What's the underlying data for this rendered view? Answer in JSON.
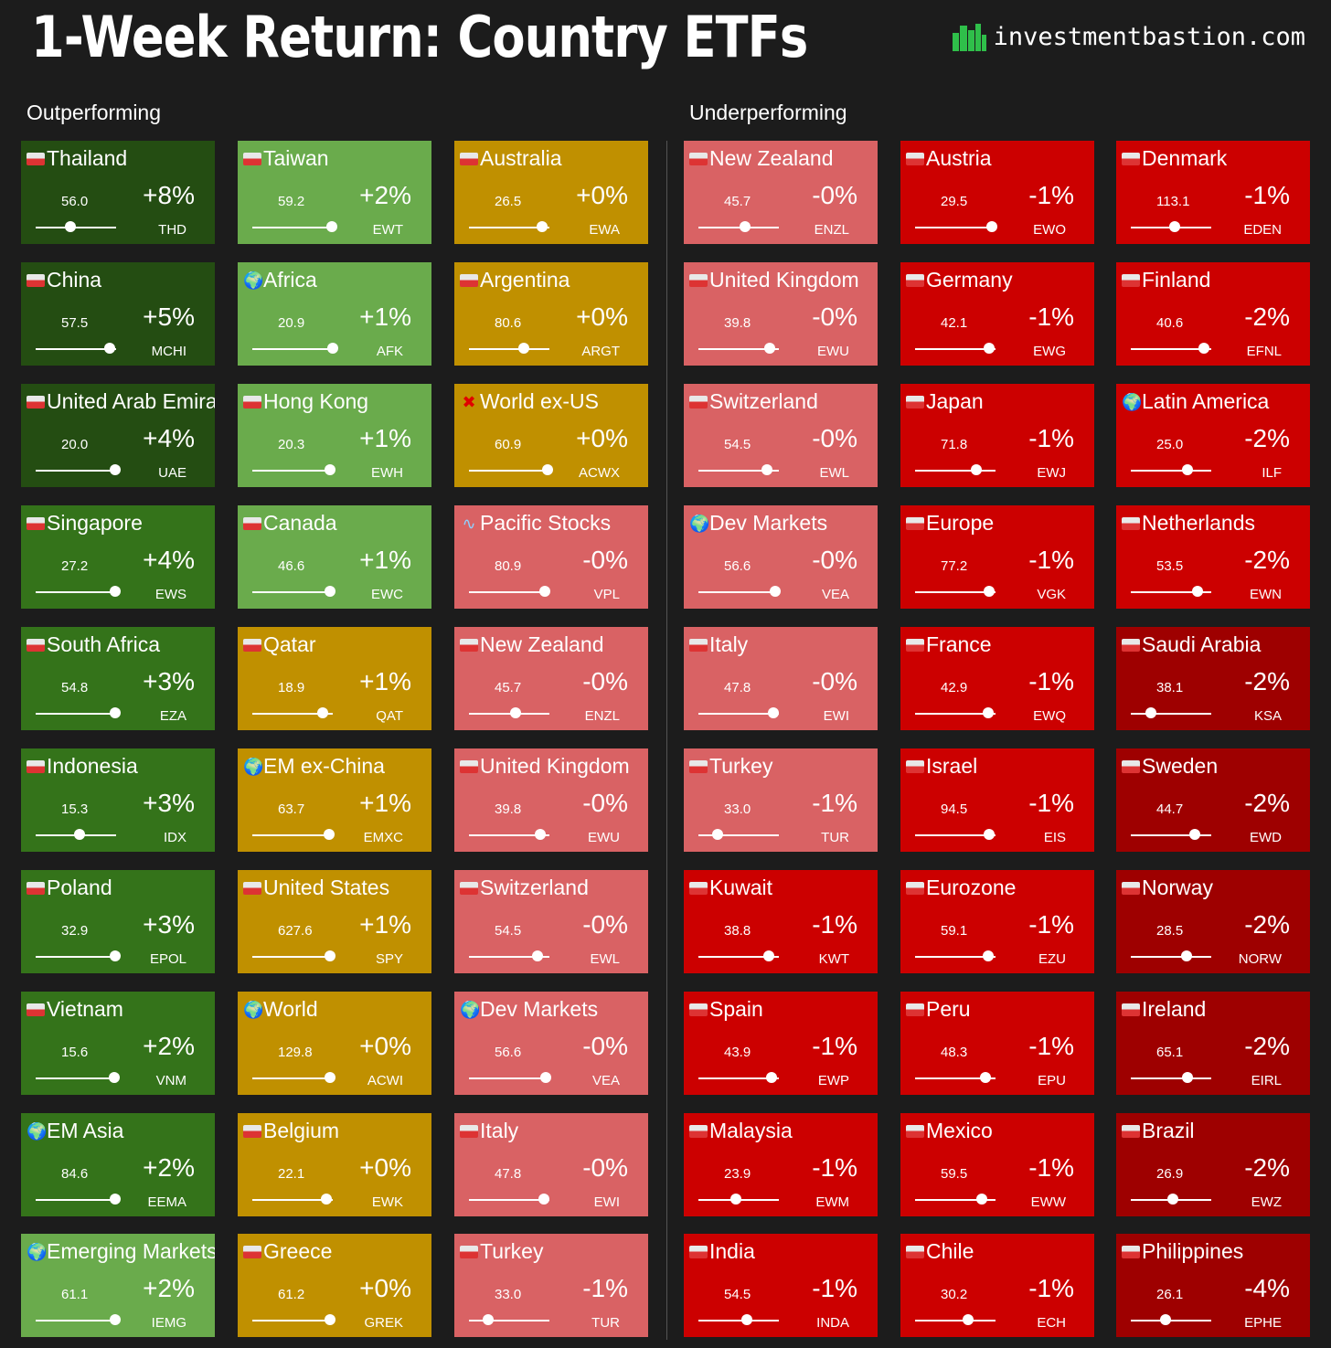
{
  "header": {
    "title": "1-Week Return: Country ETFs",
    "brand": "investmentbastion.com",
    "brand_icon": "city-skyline-icon",
    "outperforming_label": "Outperforming",
    "underperforming_label": "Underperforming"
  },
  "colors": {
    "dark_green": "#244d12",
    "green": "#34731a",
    "light_green": "#6aab4c",
    "gold": "#c09000",
    "pink": "#d96264",
    "red": "#cc0000",
    "dark_red": "#9e0000",
    "background": "#1c1c1c"
  },
  "columns": [
    [
      {
        "name": "Thailand",
        "flag": "flag-thailand-icon",
        "price": "56.0",
        "ret": "+8%",
        "ticker": "THD",
        "level": 0.43,
        "color": "dark_green"
      },
      {
        "name": "China",
        "flag": "flag-china-icon",
        "price": "57.5",
        "ret": "+5%",
        "ticker": "MCHI",
        "level": 0.92,
        "color": "dark_green"
      },
      {
        "name": "United Arab Emirates",
        "flag": "flag-uae-icon",
        "price": "20.0",
        "ret": "+4%",
        "ticker": "UAE",
        "level": 0.99,
        "color": "dark_green"
      },
      {
        "name": "Singapore",
        "flag": "flag-singapore-icon",
        "price": "27.2",
        "ret": "+4%",
        "ticker": "EWS",
        "level": 0.99,
        "color": "green"
      },
      {
        "name": "South Africa",
        "flag": "flag-south-africa-icon",
        "price": "54.8",
        "ret": "+3%",
        "ticker": "EZA",
        "level": 0.99,
        "color": "green"
      },
      {
        "name": "Indonesia",
        "flag": "flag-indonesia-icon",
        "price": "15.3",
        "ret": "+3%",
        "ticker": "IDX",
        "level": 0.54,
        "color": "green"
      },
      {
        "name": "Poland",
        "flag": "flag-poland-icon",
        "price": "32.9",
        "ret": "+3%",
        "ticker": "EPOL",
        "level": 0.99,
        "color": "green"
      },
      {
        "name": "Vietnam",
        "flag": "flag-vietnam-icon",
        "price": "15.6",
        "ret": "+2%",
        "ticker": "VNM",
        "level": 0.98,
        "color": "green"
      },
      {
        "name": "EM Asia",
        "flag": "globe-icon",
        "price": "84.6",
        "ret": "+2%",
        "ticker": "EEMA",
        "level": 0.99,
        "color": "green"
      },
      {
        "name": "Emerging Markets",
        "flag": "globe-icon",
        "price": "61.1",
        "ret": "+2%",
        "ticker": "IEMG",
        "level": 0.99,
        "color": "light_green"
      }
    ],
    [
      {
        "name": "Taiwan",
        "flag": "flag-taiwan-icon",
        "price": "59.2",
        "ret": "+2%",
        "ticker": "EWT",
        "level": 0.99,
        "color": "light_green"
      },
      {
        "name": "Africa",
        "flag": "globe-icon",
        "price": "20.9",
        "ret": "+1%",
        "ticker": "AFK",
        "level": 1.0,
        "color": "light_green"
      },
      {
        "name": "Hong Kong",
        "flag": "flag-hong-kong-icon",
        "price": "20.3",
        "ret": "+1%",
        "ticker": "EWH",
        "level": 0.97,
        "color": "light_green"
      },
      {
        "name": "Canada",
        "flag": "flag-canada-icon",
        "price": "46.6",
        "ret": "+1%",
        "ticker": "EWC",
        "level": 0.97,
        "color": "light_green"
      },
      {
        "name": "Qatar",
        "flag": "flag-qatar-icon",
        "price": "18.9",
        "ret": "+1%",
        "ticker": "QAT",
        "level": 0.88,
        "color": "gold"
      },
      {
        "name": "EM ex-China",
        "flag": "globe-icon",
        "price": "63.7",
        "ret": "+1%",
        "ticker": "EMXC",
        "level": 0.95,
        "color": "gold"
      },
      {
        "name": "United States",
        "flag": "flag-usa-icon",
        "price": "627.6",
        "ret": "+1%",
        "ticker": "SPY",
        "level": 0.97,
        "color": "gold"
      },
      {
        "name": "World",
        "flag": "globe-icon",
        "price": "129.8",
        "ret": "+0%",
        "ticker": "ACWI",
        "level": 0.97,
        "color": "gold"
      },
      {
        "name": "Belgium",
        "flag": "flag-belgium-icon",
        "price": "22.1",
        "ret": "+0%",
        "ticker": "EWK",
        "level": 0.92,
        "color": "gold"
      },
      {
        "name": "Greece",
        "flag": "flag-greece-icon",
        "price": "61.2",
        "ret": "+0%",
        "ticker": "GREK",
        "level": 0.97,
        "color": "gold"
      }
    ],
    [
      {
        "name": "Australia",
        "flag": "flag-australia-icon",
        "price": "26.5",
        "ret": "+0%",
        "ticker": "EWA",
        "level": 0.91,
        "color": "gold"
      },
      {
        "name": "Argentina",
        "flag": "flag-argentina-icon",
        "price": "80.6",
        "ret": "+0%",
        "ticker": "ARGT",
        "level": 0.68,
        "color": "gold"
      },
      {
        "name": "World ex-US",
        "flag": "cross-icon",
        "price": "60.9",
        "ret": "+0%",
        "ticker": "ACWX",
        "level": 0.98,
        "color": "gold"
      },
      {
        "name": "Pacific Stocks",
        "flag": "wave-icon",
        "price": "80.9",
        "ret": "-0%",
        "ticker": "VPL",
        "level": 0.94,
        "color": "pink"
      },
      {
        "name": "New Zealand",
        "flag": "flag-new-zealand-icon",
        "price": "45.7",
        "ret": "-0%",
        "ticker": "ENZL",
        "level": 0.58,
        "color": "pink"
      },
      {
        "name": "United Kingdom",
        "flag": "flag-uk-icon",
        "price": "39.8",
        "ret": "-0%",
        "ticker": "EWU",
        "level": 0.89,
        "color": "pink"
      },
      {
        "name": "Switzerland",
        "flag": "flag-switzerland-icon",
        "price": "54.5",
        "ret": "-0%",
        "ticker": "EWL",
        "level": 0.85,
        "color": "pink"
      },
      {
        "name": "Dev Markets",
        "flag": "globe-icon",
        "price": "56.6",
        "ret": "-0%",
        "ticker": "VEA",
        "level": 0.95,
        "color": "pink"
      },
      {
        "name": "Italy",
        "flag": "flag-italy-icon",
        "price": "47.8",
        "ret": "-0%",
        "ticker": "EWI",
        "level": 0.93,
        "color": "pink"
      },
      {
        "name": "Turkey",
        "flag": "flag-turkey-icon",
        "price": "33.0",
        "ret": "-1%",
        "ticker": "TUR",
        "level": 0.24,
        "color": "pink"
      }
    ],
    [
      {
        "name": "New Zealand",
        "flag": "flag-new-zealand-icon",
        "price": "45.7",
        "ret": "-0%",
        "ticker": "ENZL",
        "level": 0.58,
        "color": "pink"
      },
      {
        "name": "United Kingdom",
        "flag": "flag-uk-icon",
        "price": "39.8",
        "ret": "-0%",
        "ticker": "EWU",
        "level": 0.89,
        "color": "pink"
      },
      {
        "name": "Switzerland",
        "flag": "flag-switzerland-icon",
        "price": "54.5",
        "ret": "-0%",
        "ticker": "EWL",
        "level": 0.85,
        "color": "pink"
      },
      {
        "name": "Dev Markets",
        "flag": "globe-icon",
        "price": "56.6",
        "ret": "-0%",
        "ticker": "VEA",
        "level": 0.95,
        "color": "pink"
      },
      {
        "name": "Italy",
        "flag": "flag-italy-icon",
        "price": "47.8",
        "ret": "-0%",
        "ticker": "EWI",
        "level": 0.93,
        "color": "pink"
      },
      {
        "name": "Turkey",
        "flag": "flag-turkey-icon",
        "price": "33.0",
        "ret": "-1%",
        "ticker": "TUR",
        "level": 0.24,
        "color": "pink"
      },
      {
        "name": "Kuwait",
        "flag": "flag-kuwait-icon",
        "price": "38.8",
        "ret": "-1%",
        "ticker": "KWT",
        "level": 0.87,
        "color": "red"
      },
      {
        "name": "Spain",
        "flag": "flag-spain-icon",
        "price": "43.9",
        "ret": "-1%",
        "ticker": "EWP",
        "level": 0.91,
        "color": "red"
      },
      {
        "name": "Malaysia",
        "flag": "flag-malaysia-icon",
        "price": "23.9",
        "ret": "-1%",
        "ticker": "EWM",
        "level": 0.47,
        "color": "red"
      },
      {
        "name": "India",
        "flag": "flag-india-icon",
        "price": "54.5",
        "ret": "-1%",
        "ticker": "INDA",
        "level": 0.6,
        "color": "red"
      }
    ],
    [
      {
        "name": "Austria",
        "flag": "flag-austria-icon",
        "price": "29.5",
        "ret": "-1%",
        "ticker": "EWO",
        "level": 0.96,
        "color": "red"
      },
      {
        "name": "Germany",
        "flag": "flag-germany-icon",
        "price": "42.1",
        "ret": "-1%",
        "ticker": "EWG",
        "level": 0.92,
        "color": "red"
      },
      {
        "name": "Japan",
        "flag": "flag-japan-icon",
        "price": "71.8",
        "ret": "-1%",
        "ticker": "EWJ",
        "level": 0.76,
        "color": "red"
      },
      {
        "name": "Europe",
        "flag": "flag-eu-icon",
        "price": "77.2",
        "ret": "-1%",
        "ticker": "VGK",
        "level": 0.92,
        "color": "red"
      },
      {
        "name": "France",
        "flag": "flag-france-icon",
        "price": "42.9",
        "ret": "-1%",
        "ticker": "EWQ",
        "level": 0.91,
        "color": "red"
      },
      {
        "name": "Israel",
        "flag": "flag-israel-icon",
        "price": "94.5",
        "ret": "-1%",
        "ticker": "EIS",
        "level": 0.92,
        "color": "red"
      },
      {
        "name": "Eurozone",
        "flag": "flag-eu-icon",
        "price": "59.1",
        "ret": "-1%",
        "ticker": "EZU",
        "level": 0.91,
        "color": "red"
      },
      {
        "name": "Peru",
        "flag": "flag-peru-icon",
        "price": "48.3",
        "ret": "-1%",
        "ticker": "EPU",
        "level": 0.88,
        "color": "red"
      },
      {
        "name": "Mexico",
        "flag": "flag-mexico-icon",
        "price": "59.5",
        "ret": "-1%",
        "ticker": "EWW",
        "level": 0.83,
        "color": "red"
      },
      {
        "name": "Chile",
        "flag": "flag-chile-icon",
        "price": "30.2",
        "ret": "-1%",
        "ticker": "ECH",
        "level": 0.66,
        "color": "red"
      }
    ],
    [
      {
        "name": "Denmark",
        "flag": "flag-denmark-icon",
        "price": "113.1",
        "ret": "-1%",
        "ticker": "EDEN",
        "level": 0.54,
        "color": "red"
      },
      {
        "name": "Finland",
        "flag": "flag-finland-icon",
        "price": "40.6",
        "ret": "-2%",
        "ticker": "EFNL",
        "level": 0.91,
        "color": "red"
      },
      {
        "name": "Latin America",
        "flag": "globe-icon",
        "price": "25.0",
        "ret": "-2%",
        "ticker": "ILF",
        "level": 0.71,
        "color": "red"
      },
      {
        "name": "Netherlands",
        "flag": "flag-netherlands-icon",
        "price": "53.5",
        "ret": "-2%",
        "ticker": "EWN",
        "level": 0.83,
        "color": "red"
      },
      {
        "name": "Saudi Arabia",
        "flag": "flag-saudi-arabia-icon",
        "price": "38.1",
        "ret": "-2%",
        "ticker": "KSA",
        "level": 0.25,
        "color": "dark_red"
      },
      {
        "name": "Sweden",
        "flag": "flag-sweden-icon",
        "price": "44.7",
        "ret": "-2%",
        "ticker": "EWD",
        "level": 0.8,
        "color": "dark_red"
      },
      {
        "name": "Norway",
        "flag": "flag-norway-icon",
        "price": "28.5",
        "ret": "-2%",
        "ticker": "NORW",
        "level": 0.69,
        "color": "dark_red"
      },
      {
        "name": "Ireland",
        "flag": "flag-ireland-icon",
        "price": "65.1",
        "ret": "-2%",
        "ticker": "EIRL",
        "level": 0.71,
        "color": "dark_red"
      },
      {
        "name": "Brazil",
        "flag": "flag-brazil-icon",
        "price": "26.9",
        "ret": "-2%",
        "ticker": "EWZ",
        "level": 0.52,
        "color": "dark_red"
      },
      {
        "name": "Philippines",
        "flag": "flag-philippines-icon",
        "price": "26.1",
        "ret": "-4%",
        "ticker": "EPHE",
        "level": 0.43,
        "color": "dark_red"
      }
    ]
  ]
}
